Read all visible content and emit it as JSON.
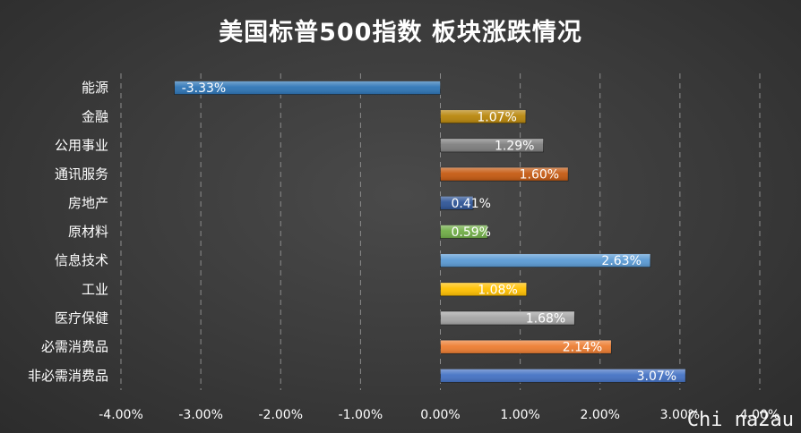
{
  "chart_data": {
    "type": "bar",
    "orientation": "horizontal",
    "title": "美国标普500指数 板块涨跌情况",
    "categories": [
      "能源",
      "金融",
      "公用事业",
      "通讯服务",
      "房地产",
      "原材料",
      "信息技术",
      "工业",
      "医疗保健",
      "必需消费品",
      "非必需消费品"
    ],
    "values": [
      -3.33,
      1.07,
      1.29,
      1.6,
      0.41,
      0.59,
      2.63,
      1.08,
      1.68,
      2.14,
      3.07
    ],
    "data_labels": [
      "-3.33%",
      "1.07%",
      "1.29%",
      "1.60%",
      "0.41%",
      "0.59%",
      "2.63%",
      "1.08%",
      "1.68%",
      "2.14%",
      "3.07%"
    ],
    "colors": [
      "#2e75b6",
      "#b8860b",
      "#7f7f7f",
      "#c55a11",
      "#2f5597",
      "#70ad47",
      "#5b9bd5",
      "#ffc000",
      "#a5a5a5",
      "#ed7d31",
      "#4472c4"
    ],
    "xlim": [
      -4,
      4
    ],
    "x_ticks": [
      "-4.00%",
      "-3.00%",
      "-2.00%",
      "-1.00%",
      "0.00%",
      "1.00%",
      "2.00%",
      "3.00%",
      "4.00%"
    ],
    "grid": "vertical-dashed",
    "legend": "none"
  },
  "watermark": "Chi na2au"
}
